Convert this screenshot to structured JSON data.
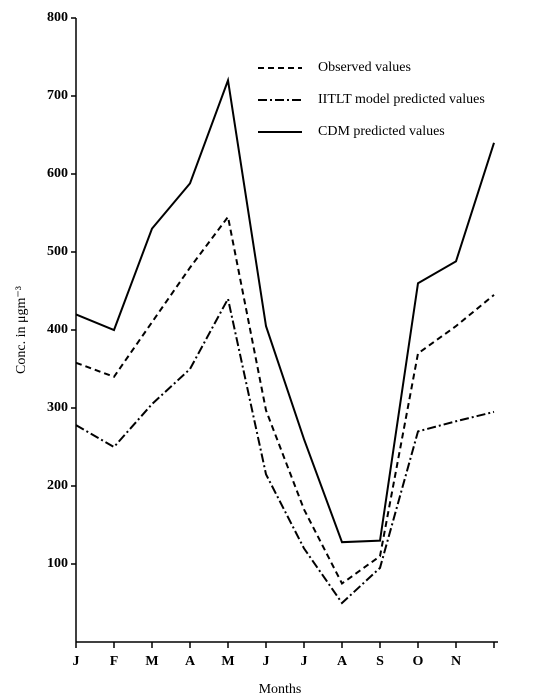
{
  "chart_data": {
    "type": "line",
    "x_label": "Months",
    "y_label": "Conc. in μgm⁻³",
    "categories": [
      "J",
      "F",
      "M",
      "A",
      "M",
      "J",
      "J",
      "A",
      "S",
      "O",
      "N",
      null
    ],
    "series": [
      {
        "name": "Observed values",
        "color": "#000000",
        "values": [
          358,
          340,
          410,
          480,
          545,
          297,
          170,
          75,
          110,
          370,
          405,
          445
        ]
      },
      {
        "name": "IITLT model predicted values",
        "color": "#000000",
        "values": [
          278,
          250,
          305,
          350,
          440,
          215,
          120,
          50,
          95,
          270,
          283,
          295
        ]
      },
      {
        "name": "CDM predicted values",
        "color": "#000000",
        "values": [
          420,
          400,
          530,
          588,
          720,
          405,
          260,
          128,
          130,
          460,
          488,
          640
        ]
      }
    ],
    "ylim": [
      0,
      800
    ],
    "yticks": [
      100,
      200,
      300,
      400,
      500,
      600,
      700,
      800
    ]
  }
}
